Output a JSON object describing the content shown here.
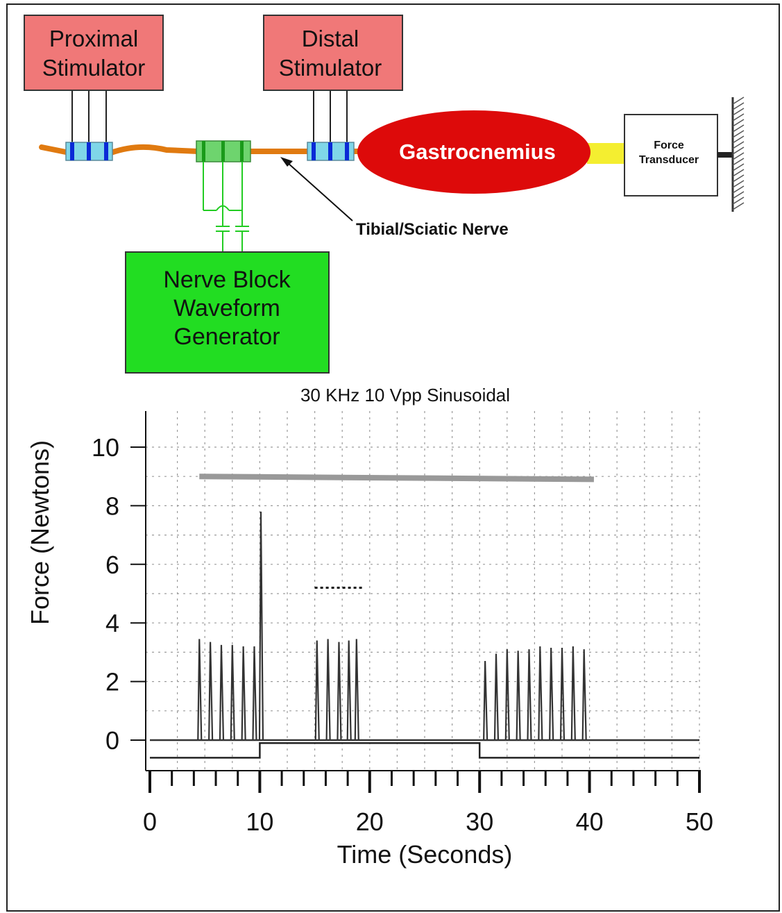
{
  "diagram": {
    "proximal_stimulator": {
      "line1": "Proximal",
      "line2": "Stimulator"
    },
    "distal_stimulator": {
      "line1": "Distal",
      "line2": "Stimulator"
    },
    "muscle_label": "Gastrocnemius",
    "force_transducer": {
      "line1": "Force",
      "line2": "Transducer"
    },
    "nerve_label": "Tibial/Sciatic Nerve",
    "waveform_generator": {
      "line1": "Nerve Block",
      "line2": "Waveform",
      "line3": "Generator"
    },
    "colors": {
      "stimulator_box": "#f07878",
      "generator_box": "#22dd22",
      "muscle": "#dd0a0a",
      "nerve": "#e07a10",
      "tendon": "#f4ee30",
      "electrode_cuff": "#7fd6e8",
      "electrode_contact": "#0a2ad6",
      "block_cuff": "#6ed46e"
    }
  },
  "chart_data": {
    "type": "line",
    "title": "30 KHz 10 Vpp Sinusoidal",
    "xlabel": "Time (Seconds)",
    "ylabel": "Force (Newtons)",
    "xlim": [
      0,
      50
    ],
    "ylim": [
      -1,
      11
    ],
    "x_ticks": [
      0,
      10,
      20,
      30,
      40,
      50
    ],
    "y_ticks": [
      0,
      2,
      4,
      6,
      8,
      10
    ],
    "grid": true,
    "series": [
      {
        "role": "force",
        "color": "#333333",
        "baseline": 0,
        "twitches": [
          {
            "t": 4.5,
            "peak": 3.45
          },
          {
            "t": 5.5,
            "peak": 3.35
          },
          {
            "t": 6.5,
            "peak": 3.25
          },
          {
            "t": 7.5,
            "peak": 3.25
          },
          {
            "t": 8.5,
            "peak": 3.2
          },
          {
            "t": 9.5,
            "peak": 3.2
          },
          {
            "t": 10.1,
            "peak": 7.8
          },
          {
            "t": 15.2,
            "peak": 3.4
          },
          {
            "t": 16.2,
            "peak": 3.45
          },
          {
            "t": 17.2,
            "peak": 3.35
          },
          {
            "t": 18.1,
            "peak": 3.4
          },
          {
            "t": 18.8,
            "peak": 3.45
          },
          {
            "t": 30.5,
            "peak": 2.7
          },
          {
            "t": 31.5,
            "peak": 2.95
          },
          {
            "t": 32.5,
            "peak": 3.1
          },
          {
            "t": 33.5,
            "peak": 3.05
          },
          {
            "t": 34.5,
            "peak": 3.1
          },
          {
            "t": 35.5,
            "peak": 3.2
          },
          {
            "t": 36.5,
            "peak": 3.15
          },
          {
            "t": 37.5,
            "peak": 3.15
          },
          {
            "t": 38.5,
            "peak": 3.2
          },
          {
            "t": 39.5,
            "peak": 3.1
          }
        ]
      },
      {
        "role": "block_on_indicator",
        "color": "#222222",
        "points": [
          [
            0,
            -0.6
          ],
          [
            10,
            -0.6
          ],
          [
            10,
            -0.1
          ],
          [
            30,
            -0.1
          ],
          [
            30,
            -0.6
          ],
          [
            50,
            -0.6
          ]
        ]
      },
      {
        "role": "stimulation_period",
        "color": "#999999",
        "points": [
          [
            4.5,
            9.0
          ],
          [
            40.4,
            8.9
          ]
        ]
      },
      {
        "role": "dotted_marker",
        "color": "#111111",
        "points": [
          [
            15,
            5.2
          ],
          [
            19.5,
            5.2
          ]
        ]
      }
    ]
  }
}
